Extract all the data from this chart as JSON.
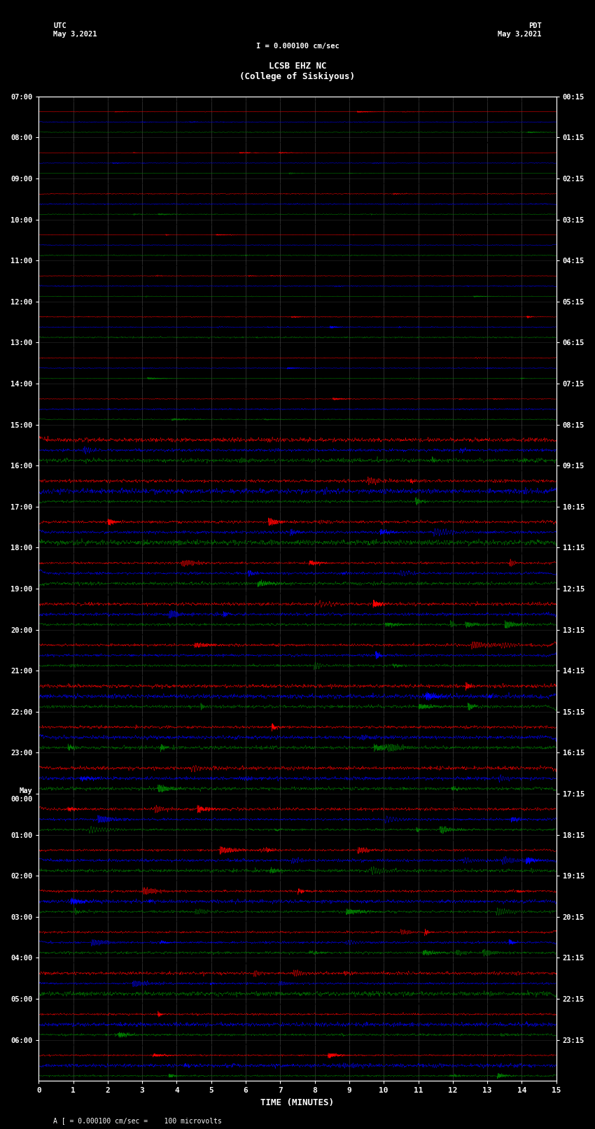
{
  "title_center": "LCSB EHZ NC\n(College of Siskiyous)",
  "title_left": "UTC\nMay 3,2021",
  "title_right": "PDT\nMay 3,2021",
  "scale_label": "I = 0.000100 cm/sec",
  "bottom_label": "A [ = 0.000100 cm/sec =    100 microvolts",
  "xlabel": "TIME (MINUTES)",
  "left_times": [
    "07:00",
    "08:00",
    "09:00",
    "10:00",
    "11:00",
    "12:00",
    "13:00",
    "14:00",
    "15:00",
    "16:00",
    "17:00",
    "18:00",
    "19:00",
    "20:00",
    "21:00",
    "22:00",
    "23:00",
    "May\n00:00",
    "01:00",
    "02:00",
    "03:00",
    "04:00",
    "05:00",
    "06:00"
  ],
  "right_times": [
    "00:15",
    "01:15",
    "02:15",
    "03:15",
    "04:15",
    "05:15",
    "06:15",
    "07:15",
    "08:15",
    "09:15",
    "10:15",
    "11:15",
    "12:15",
    "13:15",
    "14:15",
    "15:15",
    "16:15",
    "17:15",
    "18:15",
    "19:15",
    "20:15",
    "21:15",
    "22:15",
    "23:15"
  ],
  "trace_colors": [
    "black",
    "red",
    "blue",
    "green"
  ],
  "n_rows": 24,
  "traces_per_row": 4,
  "n_points": 3000,
  "bg_color": "#000000",
  "fig_width": 8.5,
  "fig_height": 16.13,
  "dpi": 100,
  "xmin": 0,
  "xmax": 15,
  "xticks": [
    0,
    1,
    2,
    3,
    4,
    5,
    6,
    7,
    8,
    9,
    10,
    11,
    12,
    13,
    14,
    15
  ],
  "grid_color": "#555555",
  "text_color": "white",
  "amplitude_by_row": [
    0.15,
    0.15,
    0.2,
    0.15,
    0.18,
    0.25,
    0.2,
    0.25,
    0.8,
    0.85,
    0.85,
    0.8,
    0.85,
    0.85,
    0.9,
    0.85,
    0.8,
    0.85,
    0.85,
    0.8,
    0.75,
    0.7,
    0.65,
    0.6
  ],
  "noise_level_by_row": [
    0.08,
    0.08,
    0.1,
    0.08,
    0.1,
    0.12,
    0.1,
    0.15,
    0.5,
    0.55,
    0.55,
    0.5,
    0.55,
    0.55,
    0.6,
    0.55,
    0.5,
    0.55,
    0.55,
    0.5,
    0.45,
    0.4,
    0.35,
    0.3
  ]
}
